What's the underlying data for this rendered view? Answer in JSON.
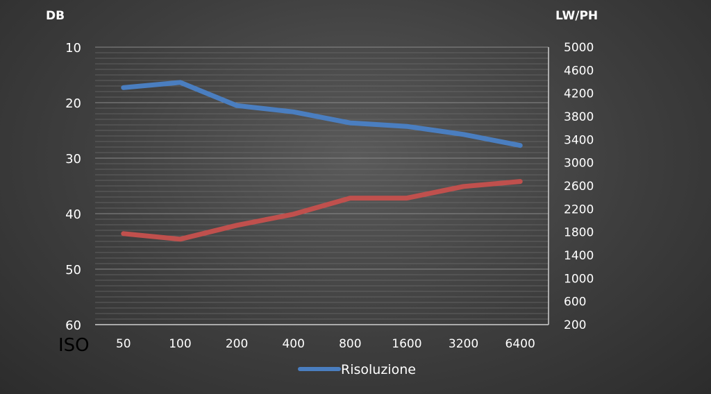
{
  "chart_data": {
    "type": "line",
    "left_axis_title": "DB",
    "right_axis_title": "LW/PH",
    "x_corner_label": "ISO",
    "categories": [
      "50",
      "100",
      "200",
      "400",
      "800",
      "1600",
      "3200",
      "6400"
    ],
    "left_axis": {
      "min": 10,
      "max": 60,
      "ticks": [
        10,
        20,
        30,
        40,
        50,
        60
      ],
      "reversed": true
    },
    "right_axis": {
      "min": 200,
      "max": 5000,
      "ticks": [
        200,
        600,
        1000,
        1400,
        1800,
        2200,
        2600,
        3000,
        3400,
        3800,
        4200,
        4600,
        5000
      ]
    },
    "grid": true,
    "legend_position": "bottom",
    "series": [
      {
        "name": "Risoluzione",
        "axis": "right",
        "color": "#4a7ec0",
        "values": [
          4300,
          4390,
          3990,
          3880,
          3690,
          3630,
          3490,
          3300
        ]
      },
      {
        "axis": "left",
        "color": "#c0504d",
        "values": [
          43.6,
          44.6,
          42.1,
          40.1,
          37.2,
          37.2,
          35.1,
          34.2
        ]
      }
    ]
  }
}
